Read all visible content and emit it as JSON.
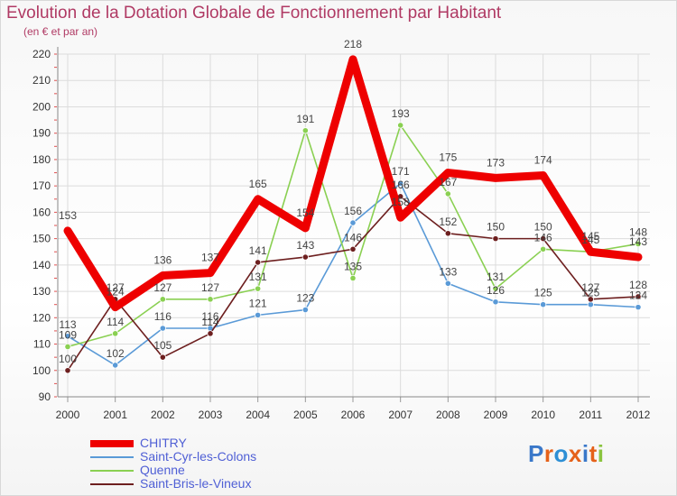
{
  "title": "Evolution de la Dotation Globale de Fonctionnement par Habitant",
  "subtitle": "(en € et par an)",
  "brand": {
    "name": "Proxiti"
  },
  "chart_data": {
    "type": "line",
    "title": "Evolution de la Dotation Globale de Fonctionnement par Habitant",
    "ylabel": "(en € et par an)",
    "xlabel": "",
    "categories": [
      "2000",
      "2001",
      "2002",
      "2003",
      "2004",
      "2005",
      "2006",
      "2007",
      "2008",
      "2009",
      "2010",
      "2011",
      "2012"
    ],
    "ylim": [
      90,
      220
    ],
    "yticks": [
      "90",
      "100",
      "110",
      "120",
      "130",
      "140",
      "150",
      "160",
      "170",
      "180",
      "190",
      "200",
      "210",
      "220"
    ],
    "grid": true,
    "legend_position": "bottom-left",
    "series": [
      {
        "name": "CHITRY",
        "color": "#ee0000",
        "values": [
          153,
          124,
          136,
          137,
          165,
          154,
          218,
          158,
          175,
          173,
          174,
          145,
          143
        ],
        "labels": [
          "153",
          "124",
          "136",
          "137",
          "165",
          "154",
          "218",
          "158",
          "175",
          "173",
          "174",
          "145",
          "143"
        ]
      },
      {
        "name": "Saint-Cyr-les-Colons",
        "color": "#5a9ad7",
        "values": [
          113,
          102,
          116,
          116,
          121,
          123,
          156,
          171,
          133,
          126,
          125,
          125,
          124
        ],
        "labels": [
          "113",
          "102",
          "116",
          "116",
          "121",
          "123",
          "156",
          "171",
          "133",
          "126",
          "125",
          "125",
          "124"
        ]
      },
      {
        "name": "Quenne",
        "color": "#8ad052",
        "values": [
          109,
          114,
          127,
          127,
          131,
          191,
          135,
          193,
          167,
          131,
          146,
          145,
          148
        ],
        "labels": [
          "109",
          "114",
          "127",
          "127",
          "131",
          "191",
          "135",
          "193",
          "167",
          "131",
          "146",
          "145",
          "148"
        ]
      },
      {
        "name": "Saint-Bris-le-Vineux",
        "color": "#6d1f1f",
        "values": [
          100,
          127,
          105,
          114,
          141,
          143,
          146,
          166,
          152,
          150,
          150,
          127,
          128
        ],
        "labels": [
          "100",
          "127",
          "105",
          "114",
          "141",
          "143",
          "146",
          "166",
          "152",
          "150",
          "150",
          "127",
          "128"
        ]
      }
    ]
  }
}
